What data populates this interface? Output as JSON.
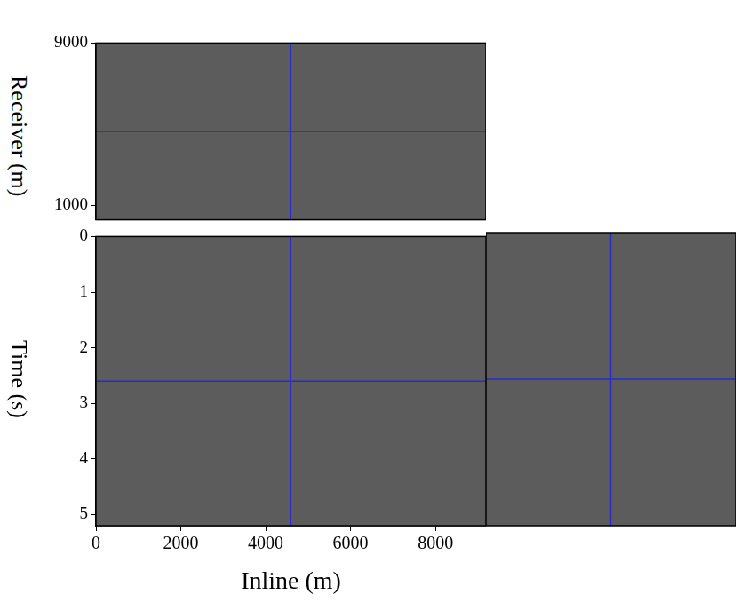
{
  "chart_data": [
    {
      "type": "image",
      "y_label": "Receiver (m)",
      "xlim": [
        0,
        9190
      ],
      "ylim": [
        280,
        9000
      ],
      "yticks": [
        1000,
        9000
      ],
      "tick_labels": "y",
      "crosshair": {
        "x": 4590,
        "y": 4640
      },
      "color": "#2a2ad0"
    },
    {
      "type": "image",
      "x_label": "Inline (m)",
      "y_label": "Time (s)",
      "xlim": [
        0,
        9190
      ],
      "ylim": [
        5.2,
        0
      ],
      "xticks": [
        0,
        2000,
        4000,
        6000,
        8000
      ],
      "yticks": [
        0,
        1,
        2,
        3,
        4,
        5
      ],
      "crosshair": {
        "x": 4590,
        "y": 2.6
      },
      "color": "#2a2ad0"
    },
    {
      "type": "image",
      "xlim": [
        280,
        9000
      ],
      "ylim": [
        5.2,
        0
      ],
      "tick_labels": false,
      "crosshair": {
        "x": 4640,
        "y": 2.6
      },
      "color": "#2a2ad0"
    }
  ]
}
